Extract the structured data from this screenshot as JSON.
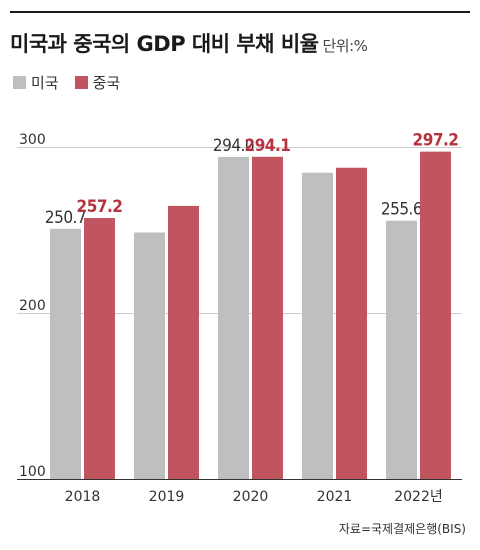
{
  "header": {
    "title": "미국과 중국의 GDP 대비 부채 비율",
    "unit": "단위:%"
  },
  "colors": {
    "us": "#bfbfbf",
    "china": "#c0545f",
    "china_label": "#b5333f",
    "grid": "#cccccc",
    "axis": "#333333"
  },
  "chart_data": {
    "type": "bar",
    "categories": [
      "2018",
      "2019",
      "2020",
      "2021",
      "2022년"
    ],
    "series": [
      {
        "name": "미국",
        "values": [
          250.7,
          248.5,
          294.0,
          284.5,
          255.6
        ],
        "labels": [
          "250.7",
          null,
          "294.0",
          null,
          "255.6"
        ]
      },
      {
        "name": "중국",
        "values": [
          257.2,
          264.5,
          294.1,
          287.5,
          297.2
        ],
        "labels": [
          "257.2",
          null,
          "294.1",
          null,
          "297.2"
        ]
      }
    ],
    "ylim": [
      100,
      300
    ],
    "yticks": [
      100,
      200,
      300
    ],
    "grid": true,
    "legend": "top-left"
  },
  "source": "자료=국제결제은행(BIS)"
}
